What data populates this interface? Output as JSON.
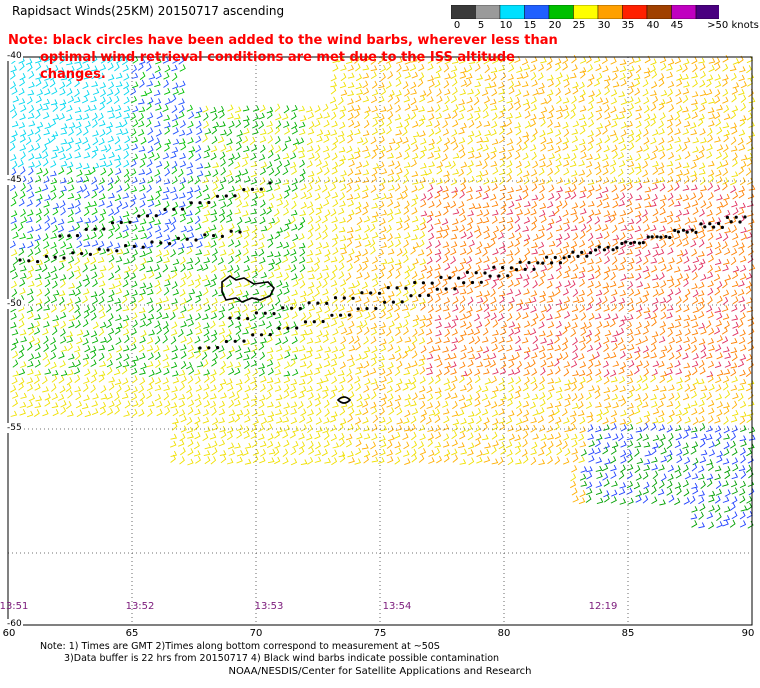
{
  "title": "Rapidsact Winds(25KM) 20150717 ascending",
  "note": {
    "line1": "Note: black circles have been added to the wind barbs, wherever less than",
    "line2": "optimal wind retrieval conditions are met due to the ISS altitude changes."
  },
  "colorbar": {
    "unit_label": ">50 knots",
    "labels": [
      "0",
      "5",
      "10",
      "15",
      "20",
      "25",
      "30",
      "35",
      "40",
      "45"
    ],
    "colors": [
      "#3a3a3a",
      "#9a9a9a",
      "#00e0ff",
      "#2060ff",
      "#00c000",
      "#ffff00",
      "#ffa000",
      "#ff2000",
      "#a04000",
      "#c000c0",
      "#4a0080"
    ]
  },
  "axes": {
    "lat_labels": [
      "-40",
      "-45",
      "-50",
      "-55",
      "-60"
    ],
    "lon_labels": [
      "60",
      "65",
      "70",
      "75",
      "80",
      "85",
      "90"
    ],
    "times": [
      "13:51",
      "13:52",
      "13:53",
      "13:54",
      "12:19"
    ]
  },
  "footnote": {
    "line1": "Note: 1) Times are GMT 2)Times along bottom correspond to measurement at ~50S",
    "line2": "3)Data buffer is 22 hrs from 20150717 4) Black wind barbs indicate possible contamination"
  },
  "credit": "NOAA/NESDIS/Center for Satellite Applications and Research"
}
